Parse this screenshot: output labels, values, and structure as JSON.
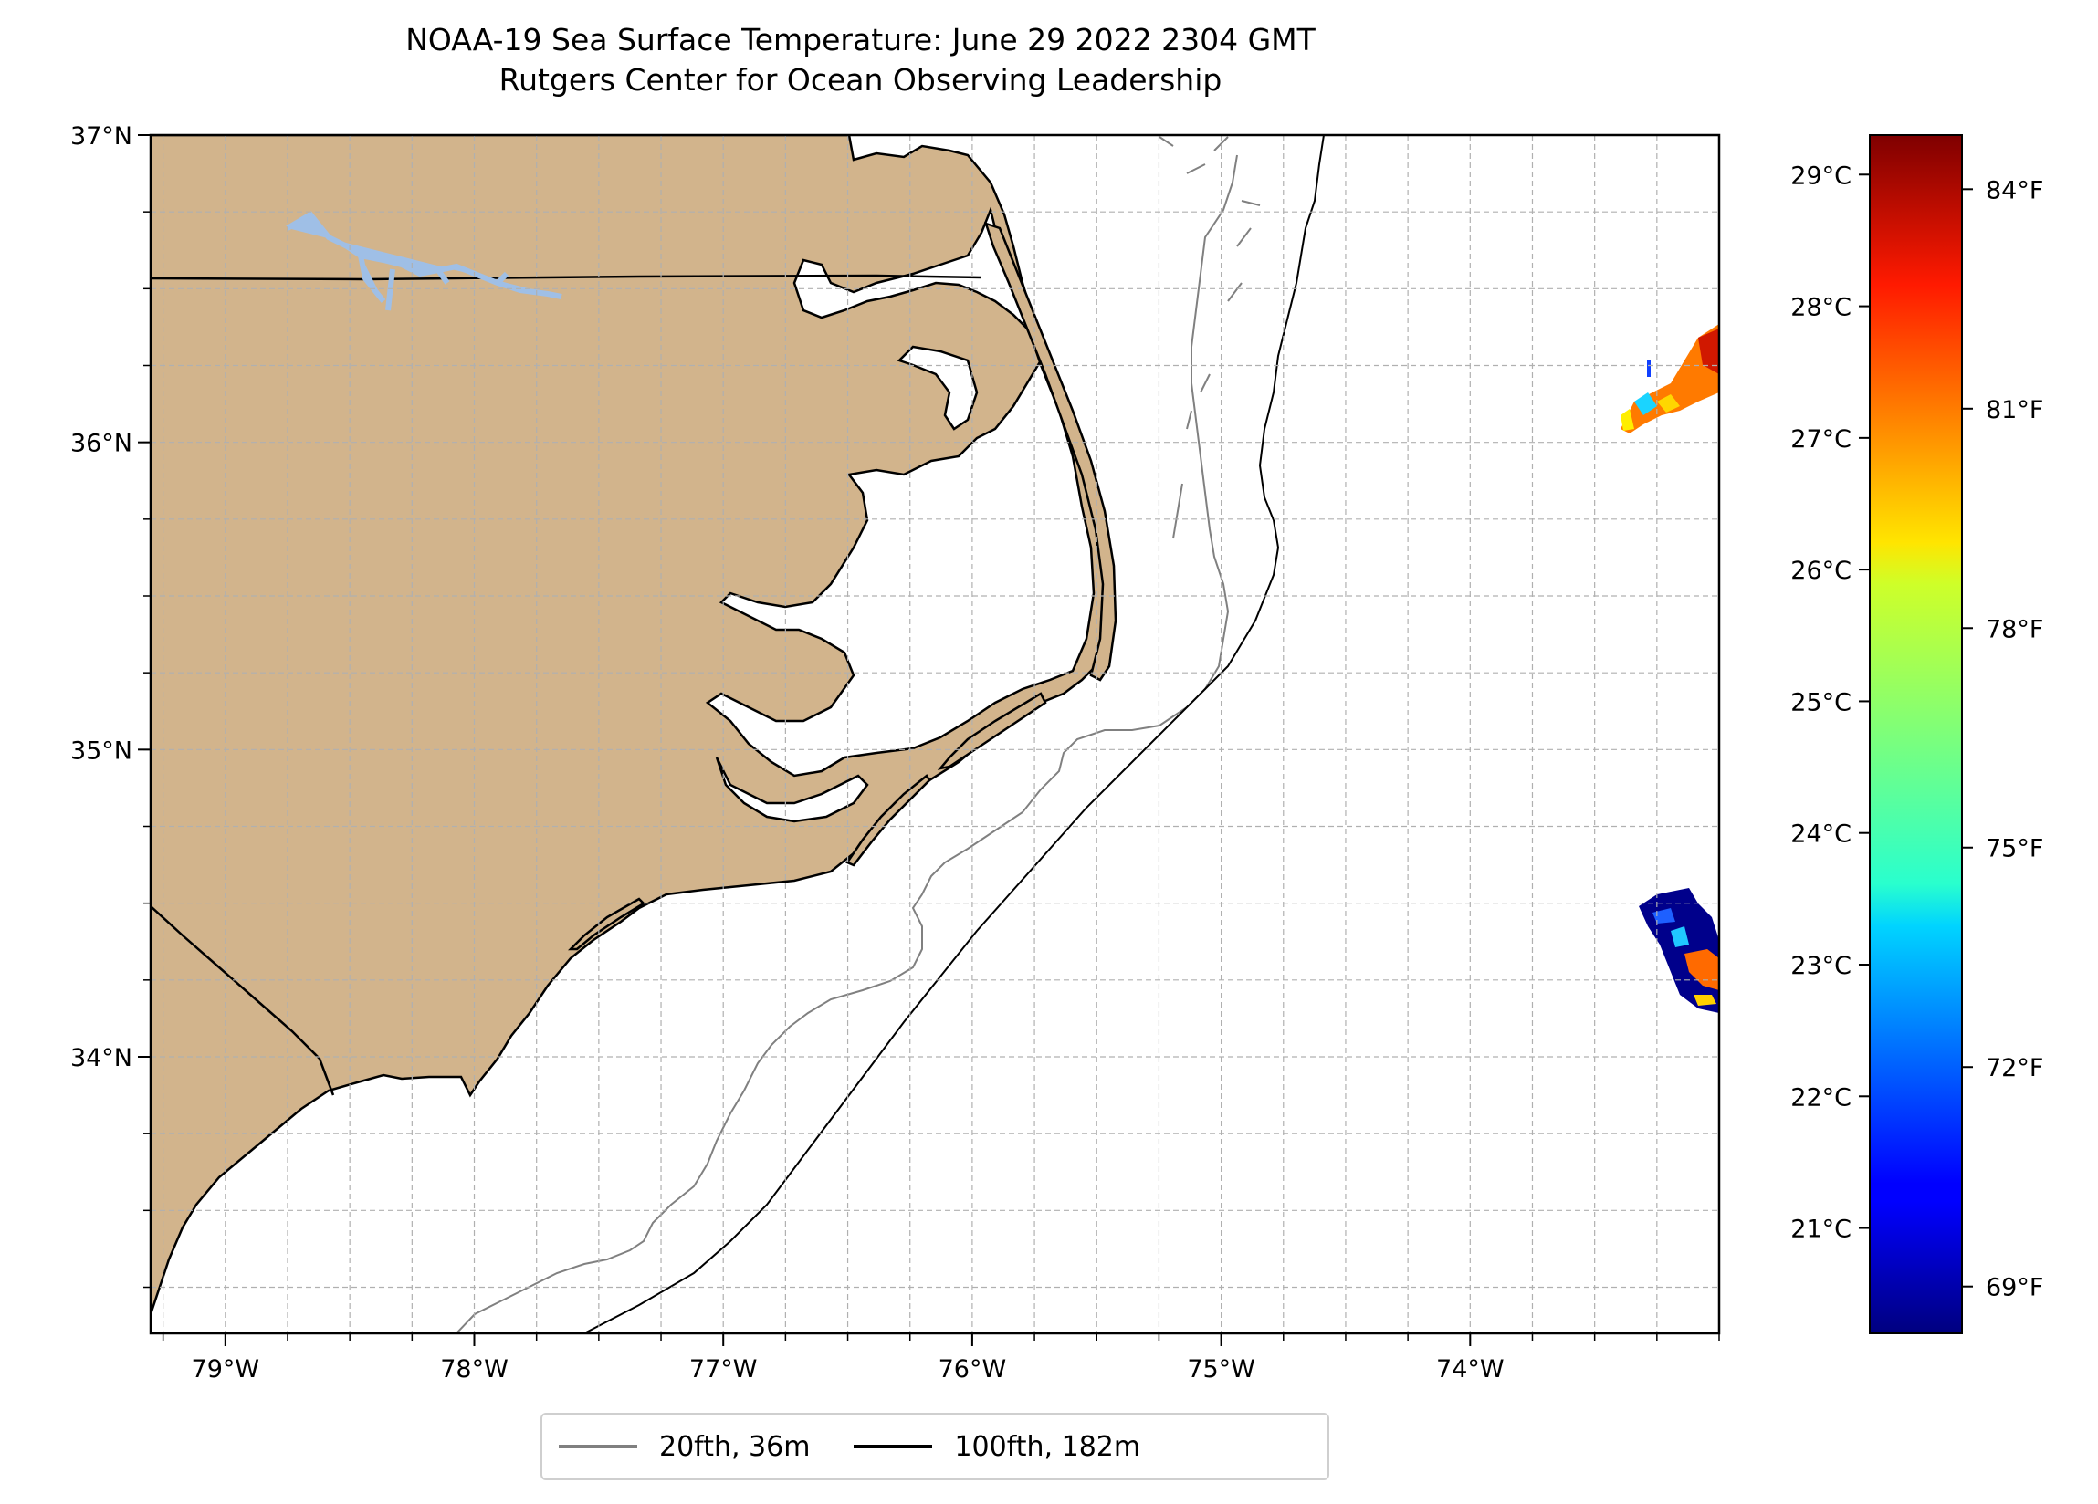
{
  "title": {
    "line1": "NOAA-19 Sea Surface Temperature: June 29 2022 2304 GMT",
    "line2": "Rutgers Center for Ocean Observing Leadership"
  },
  "map": {
    "lon_range": [
      -79.3,
      -73.0
    ],
    "lat_range": [
      33.1,
      37.0
    ],
    "lon_ticks": [
      {
        "value": -79,
        "label": "79°W"
      },
      {
        "value": -78,
        "label": "78°W"
      },
      {
        "value": -77,
        "label": "77°W"
      },
      {
        "value": -76,
        "label": "76°W"
      },
      {
        "value": -75,
        "label": "75°W"
      },
      {
        "value": -74,
        "label": "74°W"
      }
    ],
    "lat_ticks": [
      {
        "value": 37,
        "label": "37°N"
      },
      {
        "value": 36,
        "label": "36°N"
      },
      {
        "value": 35,
        "label": "35°N"
      },
      {
        "value": 34,
        "label": "34°N"
      }
    ],
    "grid": true,
    "land_color": "#d2b48c",
    "lake_color": "#9fbfe6"
  },
  "colorbar": {
    "colormap": "jet",
    "celsius_ticks": [
      "29°C",
      "28°C",
      "27°C",
      "26°C",
      "25°C",
      "24°C",
      "23°C",
      "22°C",
      "21°C"
    ],
    "fahrenheit_ticks": [
      "84°F",
      "81°F",
      "78°F",
      "75°F",
      "72°F",
      "69°F"
    ]
  },
  "legend": {
    "items": [
      {
        "label": "20fth, 36m",
        "color": "#808080"
      },
      {
        "label": "100fth, 182m",
        "color": "#000000"
      }
    ]
  }
}
